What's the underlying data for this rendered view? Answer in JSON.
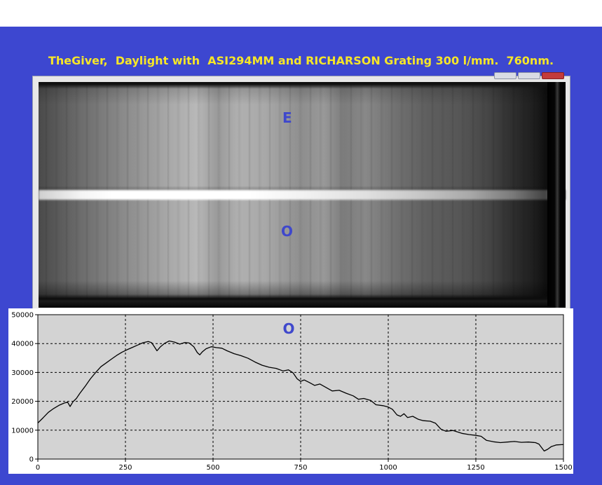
{
  "header": {
    "title": "TheGiver,  Daylight with  ASI294MM and RICHARSON Grating 300 l/mm.  760nm."
  },
  "spectrum_image": {
    "label_top": "E",
    "label_bottom": "O"
  },
  "colors": {
    "slide_background": "#3d47d0",
    "title_text": "#f6e628",
    "label_text": "#3f48cc",
    "plot_background": "#d3d3d3",
    "line_color": "#000000"
  },
  "chart_data": {
    "type": "line",
    "title": "",
    "annotation": "O",
    "xlabel": "",
    "ylabel": "",
    "xlim": [
      0,
      1500
    ],
    "ylim": [
      0,
      50000
    ],
    "xticks": [
      0,
      250,
      500,
      750,
      1000,
      1250,
      1500
    ],
    "yticks": [
      0,
      10000,
      20000,
      30000,
      40000,
      50000
    ],
    "xtick_labels": [
      "0",
      "250",
      "500",
      "750",
      "1000",
      "1250",
      "1500"
    ],
    "ytick_labels": [
      "0",
      "10000",
      "20000",
      "30000",
      "40000",
      "50000"
    ],
    "grid": true,
    "series": [
      {
        "values": [
          [
            0,
            12500
          ],
          [
            15,
            14300
          ],
          [
            30,
            16200
          ],
          [
            45,
            17500
          ],
          [
            60,
            18600
          ],
          [
            75,
            19400
          ],
          [
            85,
            19700
          ],
          [
            92,
            18200
          ],
          [
            100,
            19800
          ],
          [
            110,
            21000
          ],
          [
            120,
            22800
          ],
          [
            135,
            25200
          ],
          [
            150,
            27800
          ],
          [
            165,
            30000
          ],
          [
            180,
            32000
          ],
          [
            195,
            33300
          ],
          [
            210,
            34600
          ],
          [
            225,
            35900
          ],
          [
            240,
            37000
          ],
          [
            255,
            37900
          ],
          [
            270,
            38700
          ],
          [
            285,
            39500
          ],
          [
            300,
            40300
          ],
          [
            315,
            40700
          ],
          [
            325,
            40300
          ],
          [
            333,
            38800
          ],
          [
            340,
            37500
          ],
          [
            350,
            38900
          ],
          [
            362,
            40100
          ],
          [
            375,
            40900
          ],
          [
            390,
            40500
          ],
          [
            405,
            39800
          ],
          [
            420,
            40400
          ],
          [
            432,
            40200
          ],
          [
            445,
            38900
          ],
          [
            455,
            36900
          ],
          [
            462,
            36100
          ],
          [
            470,
            37200
          ],
          [
            480,
            38200
          ],
          [
            495,
            38900
          ],
          [
            510,
            38600
          ],
          [
            525,
            38400
          ],
          [
            540,
            37500
          ],
          [
            560,
            36500
          ],
          [
            580,
            35800
          ],
          [
            600,
            34900
          ],
          [
            620,
            33600
          ],
          [
            640,
            32500
          ],
          [
            660,
            31800
          ],
          [
            680,
            31400
          ],
          [
            700,
            30500
          ],
          [
            715,
            30900
          ],
          [
            728,
            29900
          ],
          [
            740,
            27800
          ],
          [
            750,
            26900
          ],
          [
            760,
            27400
          ],
          [
            775,
            26500
          ],
          [
            790,
            25500
          ],
          [
            805,
            26000
          ],
          [
            825,
            24600
          ],
          [
            840,
            23600
          ],
          [
            860,
            23800
          ],
          [
            880,
            22800
          ],
          [
            900,
            21900
          ],
          [
            915,
            20700
          ],
          [
            930,
            21000
          ],
          [
            950,
            20300
          ],
          [
            965,
            18800
          ],
          [
            985,
            18500
          ],
          [
            1000,
            18000
          ],
          [
            1012,
            17200
          ],
          [
            1025,
            15300
          ],
          [
            1035,
            14800
          ],
          [
            1045,
            15700
          ],
          [
            1055,
            14400
          ],
          [
            1070,
            14800
          ],
          [
            1085,
            13800
          ],
          [
            1100,
            13300
          ],
          [
            1120,
            13100
          ],
          [
            1135,
            12400
          ],
          [
            1150,
            10400
          ],
          [
            1165,
            9600
          ],
          [
            1185,
            9900
          ],
          [
            1210,
            8900
          ],
          [
            1230,
            8500
          ],
          [
            1250,
            8200
          ],
          [
            1265,
            7900
          ],
          [
            1280,
            6500
          ],
          [
            1300,
            6000
          ],
          [
            1320,
            5700
          ],
          [
            1340,
            5900
          ],
          [
            1360,
            6100
          ],
          [
            1380,
            5800
          ],
          [
            1400,
            5900
          ],
          [
            1420,
            5700
          ],
          [
            1430,
            5200
          ],
          [
            1438,
            3900
          ],
          [
            1445,
            2800
          ],
          [
            1455,
            3400
          ],
          [
            1465,
            4300
          ],
          [
            1480,
            4900
          ],
          [
            1495,
            5000
          ],
          [
            1500,
            5000
          ]
        ]
      }
    ]
  }
}
